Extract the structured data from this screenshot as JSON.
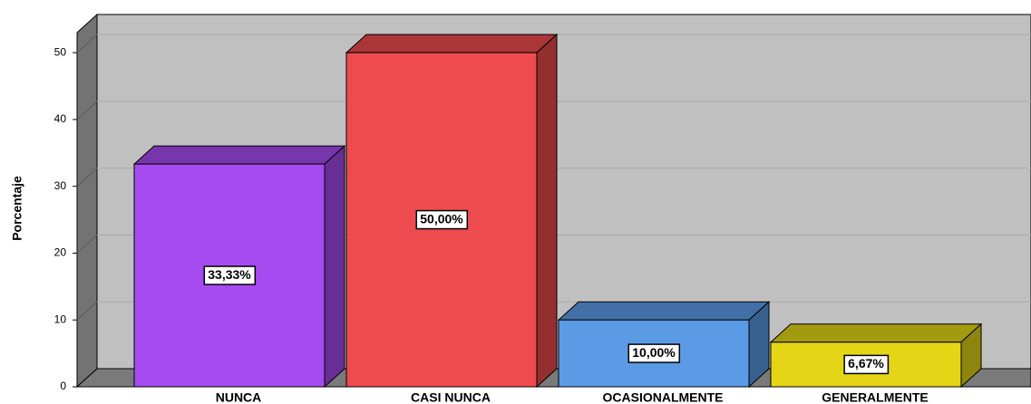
{
  "chart_data": {
    "type": "bar3d",
    "y_label": "Porcentaje",
    "categories": [
      "NUNCA",
      "CASI NUNCA",
      "OCASIONALMENTE",
      "GENERALMENTE"
    ],
    "values": [
      33.33,
      50,
      10,
      6.67
    ],
    "value_labels": [
      "33,33%",
      "50,00%",
      "10,00%",
      "6,67%"
    ],
    "colors": [
      "#a64bf0",
      "#ee4b4e",
      "#5b9be6",
      "#e4d616"
    ],
    "ylim": [
      0,
      53
    ],
    "yticks": [
      0,
      10,
      20,
      30,
      40,
      50
    ],
    "grid": true
  }
}
